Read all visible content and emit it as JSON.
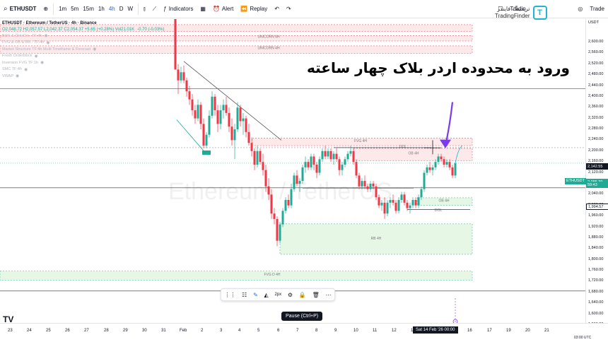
{
  "toolbar": {
    "symbol": "ETHUSDT",
    "timeframes": [
      "1m",
      "5m",
      "15m",
      "1h",
      "4h",
      "D",
      "W"
    ],
    "active_timeframe": "4h",
    "indicators_label": "Indicators",
    "alert_label": "Alert",
    "replay_label": "Replay",
    "trading_label": "Tradin",
    "trade_label": "Trade"
  },
  "logo": {
    "persian": "تریدینگ فایندر",
    "english": "TradingFinder"
  },
  "legend": {
    "title": "ETHUSDT · Ethereum / TetherUS · 4h · Binance",
    "ohlc": "O2,048.72 H2,057.57 L2,042.37 C2,054.37 +5.65 (+0.28%) Vol21.01K",
    "extra": "-0.70 (-0.03%)",
    "indicators": [
      "BOS & CHoCH · TF:4h",
      "FVG & OB & BB · TF:4h",
      "Market Structure TF:4h Multi Timeframe & Forecast",
      "Fresh Orderblock",
      "Inversion FVG TF:1h",
      "SMC TF:4h",
      "VWAP"
    ]
  },
  "annotation": "ورود به محدوده اردر بلاک چهار ساعته",
  "watermark": "Ethereum / TetherUS",
  "zone_labels": {
    "unicorn1": "UNICORN 4H",
    "unicorn2": "UNICORN 4H",
    "fvg1": "FVG 4H",
    "ob1": "OB 4H",
    "ob2": "OB 4H",
    "dol1": "DOL",
    "dol2": "DOL",
    "rb": "RB 4H",
    "fvg2": "FVG D 4H",
    "bos": "BOS"
  },
  "price_scale": {
    "labels": [
      "2,600.00",
      "2,560.00",
      "2,520.00",
      "2,480.00",
      "2,440.00",
      "2,400.00",
      "2,360.00",
      "2,320.00",
      "2,280.00",
      "2,240.00",
      "2,200.00",
      "2,160.00",
      "2,120.00",
      "2,080.00",
      "2,040.00",
      "2,000.00",
      "1,960.00",
      "1,920.00",
      "1,880.00",
      "1,840.00",
      "1,800.00",
      "1,760.00",
      "1,720.00",
      "1,680.00",
      "1,640.00",
      "1,600.00",
      "1,560.00"
    ],
    "currency": "USDT",
    "tags": {
      "level1": "2,142.55",
      "symbol_tag": "ETHUSDT",
      "current": "2,085.39",
      "countdown": "59:43",
      "level2": "1,994.57"
    }
  },
  "time_axis": {
    "labels": [
      "23",
      "24",
      "25",
      "26",
      "27",
      "28",
      "29",
      "30",
      "31",
      "Feb",
      "2",
      "3",
      "4",
      "5",
      "6",
      "7",
      "8",
      "9",
      "10",
      "11",
      "12",
      "13",
      "16",
      "17",
      "19",
      "20",
      "21"
    ],
    "cursor_tag": "Sat 14 Feb '26  00:00",
    "clock": "03:00 UTC"
  },
  "drawbar": {
    "size_label": "2px"
  },
  "pause_label": "Pause (Ctrl+P)",
  "colors": {
    "up": "#22ab94",
    "down": "#f23645",
    "zone_red": "#f7c6cc",
    "zone_green": "#c8efc9",
    "arrow": "#7c3aed",
    "accent": "#2962ff"
  }
}
